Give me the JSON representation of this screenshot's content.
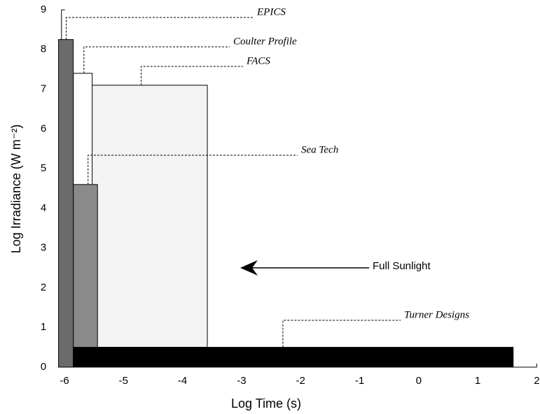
{
  "chart_data": {
    "type": "range-rect",
    "x_label": "Log Time (s)",
    "y_label": "Log Irradiance (W m⁻²)",
    "xlim": [
      -6.05,
      2
    ],
    "ylim": [
      0,
      9
    ],
    "xticks": [
      -6,
      -5,
      -4,
      -3,
      -2,
      -1,
      0,
      1,
      2
    ],
    "yticks": [
      0,
      1,
      2,
      3,
      4,
      5,
      6,
      7,
      8,
      9
    ],
    "series": [
      {
        "name": "FACS",
        "color": "#f3f3f3",
        "x": [
          -5.54,
          -3.58
        ],
        "y": [
          0.5,
          7.1
        ]
      },
      {
        "name": "Coulter Profile",
        "color": "#ffffff",
        "x": [
          -5.85,
          -5.53
        ],
        "y": [
          0,
          7.4
        ]
      },
      {
        "name": "Sea Tech",
        "color": "#8a8a8a",
        "x": [
          -5.85,
          -5.44
        ],
        "y": [
          0,
          4.6
        ]
      },
      {
        "name": "EPICS",
        "color": "#6b6b6b",
        "x": [
          -6.1,
          -5.85
        ],
        "y": [
          0,
          8.25
        ]
      },
      {
        "name": "Turner Designs",
        "color": "#000000",
        "x": [
          -5.85,
          1.6
        ],
        "y": [
          0,
          0.5
        ]
      }
    ],
    "annotation": "Full Sunlight"
  }
}
